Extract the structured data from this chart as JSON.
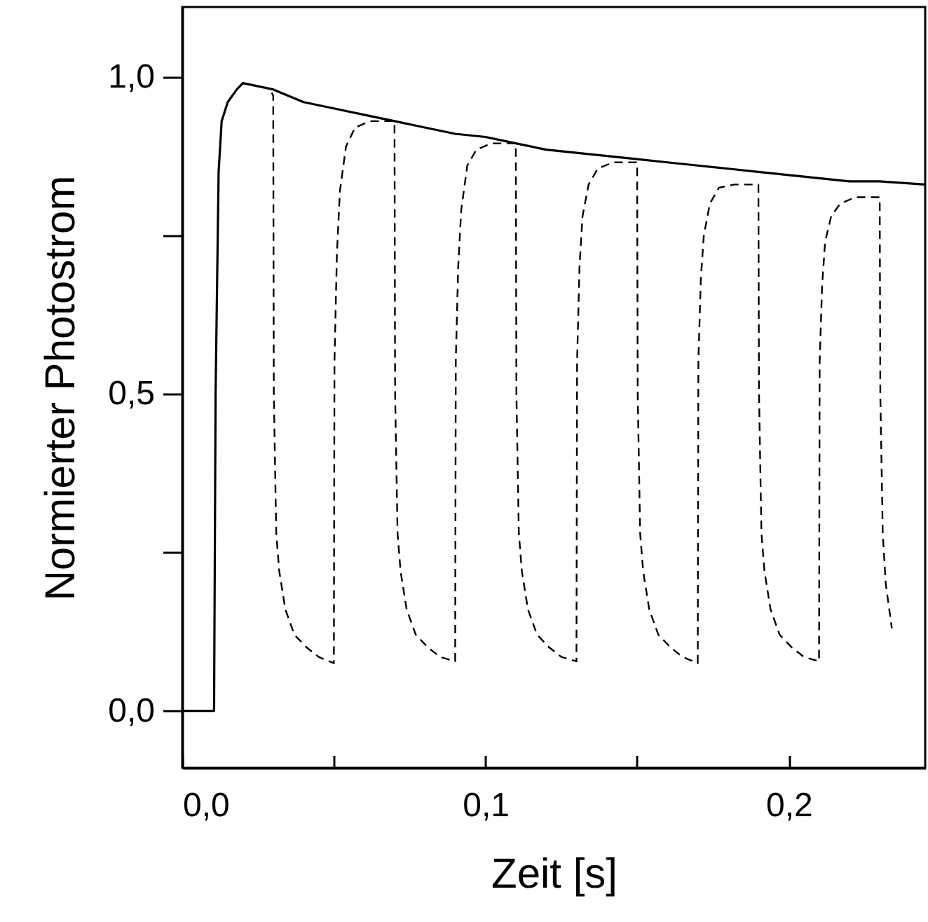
{
  "chart_data": {
    "type": "line",
    "xlabel": "Zeit  [s]",
    "ylabel": "Normierter Photostrom",
    "xlim": [
      0,
      0.245
    ],
    "ylim": [
      -0.09,
      1.11
    ],
    "xticks": [
      {
        "value": 0,
        "label": "0,0"
      },
      {
        "value": 0.05,
        "label": null
      },
      {
        "value": 0.1,
        "label": "0,1"
      },
      {
        "value": 0.15,
        "label": null
      },
      {
        "value": 0.2,
        "label": "0,2"
      }
    ],
    "yticks": [
      {
        "value": 0,
        "label": "0,0"
      },
      {
        "value": 0.25,
        "label": null
      },
      {
        "value": 0.5,
        "label": "0,5"
      },
      {
        "value": 0.75,
        "label": null
      },
      {
        "value": 1,
        "label": "1,0"
      }
    ],
    "grid": false,
    "series": [
      {
        "color": "#000000",
        "line_style": "solid",
        "x": [
          0,
          0.005,
          0.0105,
          0.011,
          0.012,
          0.013,
          0.015,
          0.018,
          0.02,
          0.025,
          0.03,
          0.035,
          0.04,
          0.05,
          0.06,
          0.07,
          0.08,
          0.09,
          0.1,
          0.11,
          0.12,
          0.13,
          0.14,
          0.15,
          0.16,
          0.17,
          0.18,
          0.19,
          0.2,
          0.21,
          0.22,
          0.23,
          0.245
        ],
        "values": [
          0,
          0,
          0,
          0.5,
          0.85,
          0.93,
          0.96,
          0.98,
          0.99,
          0.985,
          0.98,
          0.97,
          0.96,
          0.95,
          0.94,
          0.93,
          0.92,
          0.91,
          0.905,
          0.895,
          0.885,
          0.88,
          0.875,
          0.87,
          0.865,
          0.86,
          0.855,
          0.85,
          0.845,
          0.84,
          0.835,
          0.835,
          0.83
        ]
      },
      {
        "color": "#000000",
        "line_style": "dashed",
        "x": [
          0.0295,
          0.03,
          0.0302,
          0.031,
          0.032,
          0.034,
          0.037,
          0.041,
          0.045,
          0.05,
          0.0502,
          0.051,
          0.052,
          0.054,
          0.057,
          0.062,
          0.07,
          0.0702,
          0.071,
          0.072,
          0.074,
          0.077,
          0.081,
          0.085,
          0.09,
          0.0902,
          0.091,
          0.092,
          0.094,
          0.097,
          0.102,
          0.11,
          0.1102,
          0.111,
          0.112,
          0.114,
          0.117,
          0.121,
          0.125,
          0.13,
          0.1302,
          0.131,
          0.132,
          0.134,
          0.137,
          0.142,
          0.15,
          0.1502,
          0.151,
          0.152,
          0.154,
          0.157,
          0.161,
          0.165,
          0.17,
          0.1702,
          0.171,
          0.172,
          0.174,
          0.177,
          0.182,
          0.19,
          0.1902,
          0.191,
          0.192,
          0.194,
          0.197,
          0.201,
          0.205,
          0.21,
          0.2102,
          0.211,
          0.212,
          0.214,
          0.217,
          0.222,
          0.23,
          0.2302,
          0.231,
          0.232,
          0.234
        ],
        "values": [
          0.975,
          0.97,
          0.5,
          0.28,
          0.22,
          0.16,
          0.12,
          0.1,
          0.085,
          0.075,
          0.55,
          0.72,
          0.82,
          0.89,
          0.92,
          0.93,
          0.93,
          0.5,
          0.28,
          0.22,
          0.16,
          0.12,
          0.1,
          0.085,
          0.078,
          0.55,
          0.7,
          0.79,
          0.86,
          0.885,
          0.895,
          0.895,
          0.5,
          0.28,
          0.22,
          0.16,
          0.12,
          0.1,
          0.085,
          0.078,
          0.55,
          0.7,
          0.78,
          0.83,
          0.855,
          0.865,
          0.865,
          0.5,
          0.28,
          0.22,
          0.16,
          0.12,
          0.1,
          0.085,
          0.075,
          0.55,
          0.68,
          0.75,
          0.8,
          0.825,
          0.83,
          0.83,
          0.5,
          0.28,
          0.22,
          0.16,
          0.12,
          0.1,
          0.085,
          0.078,
          0.55,
          0.67,
          0.74,
          0.78,
          0.8,
          0.81,
          0.81,
          0.5,
          0.28,
          0.2,
          0.13
        ]
      }
    ]
  }
}
